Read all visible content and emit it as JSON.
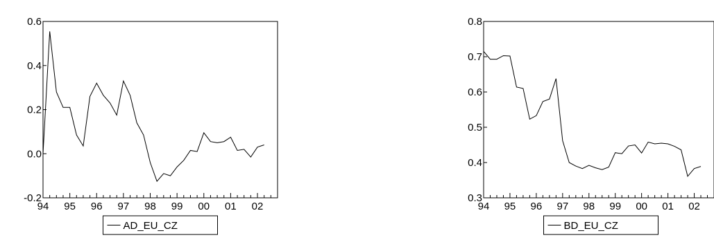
{
  "chart_data": [
    {
      "type": "line",
      "title": "",
      "xlabel": "",
      "ylabel": "",
      "x_tick_labels": [
        "94",
        "95",
        "96",
        "97",
        "98",
        "99",
        "00",
        "01",
        "02"
      ],
      "ylim": [
        -0.2,
        0.6
      ],
      "y_ticks": [
        -0.2,
        0.0,
        0.2,
        0.4,
        0.6
      ],
      "y_tick_labels": [
        "-0.2",
        "0.0",
        "0.2",
        "0.4",
        "0.6"
      ],
      "grid": false,
      "legend_position": "bottom",
      "series": [
        {
          "name": "AD_EU_CZ",
          "color": "#000000",
          "x": [
            1994.0,
            1994.25,
            1994.5,
            1994.75,
            1995.0,
            1995.25,
            1995.5,
            1995.75,
            1996.0,
            1996.25,
            1996.5,
            1996.75,
            1997.0,
            1997.25,
            1997.5,
            1997.75,
            1998.0,
            1998.25,
            1998.5,
            1998.75,
            1999.0,
            1999.25,
            1999.5,
            1999.75,
            2000.0,
            2000.25,
            2000.5,
            2000.75,
            2001.0,
            2001.25,
            2001.5,
            2001.75,
            2002.0,
            2002.25
          ],
          "y": [
            0.0,
            0.555,
            0.28,
            0.21,
            0.21,
            0.085,
            0.035,
            0.26,
            0.32,
            0.265,
            0.23,
            0.175,
            0.33,
            0.265,
            0.14,
            0.085,
            -0.04,
            -0.125,
            -0.09,
            -0.1,
            -0.06,
            -0.03,
            0.015,
            0.01,
            0.095,
            0.055,
            0.05,
            0.055,
            0.075,
            0.015,
            0.02,
            -0.015,
            0.03,
            0.04
          ]
        }
      ]
    },
    {
      "type": "line",
      "title": "",
      "xlabel": "",
      "ylabel": "",
      "x_tick_labels": [
        "94",
        "95",
        "96",
        "97",
        "98",
        "99",
        "00",
        "01",
        "02"
      ],
      "ylim": [
        0.3,
        0.8
      ],
      "y_ticks": [
        0.3,
        0.4,
        0.5,
        0.6,
        0.7,
        0.8
      ],
      "y_tick_labels": [
        "0.3",
        "0.4",
        "0.5",
        "0.6",
        "0.7",
        "0.8"
      ],
      "grid": false,
      "legend_position": "bottom",
      "series": [
        {
          "name": "BD_EU_CZ",
          "color": "#000000",
          "x": [
            1994.0,
            1994.25,
            1994.5,
            1994.75,
            1995.0,
            1995.25,
            1995.5,
            1995.75,
            1996.0,
            1996.25,
            1996.5,
            1996.75,
            1997.0,
            1997.25,
            1997.5,
            1997.75,
            1998.0,
            1998.25,
            1998.5,
            1998.75,
            1999.0,
            1999.25,
            1999.5,
            1999.75,
            2000.0,
            2000.25,
            2000.5,
            2000.75,
            2001.0,
            2001.25,
            2001.5,
            2001.75,
            2002.0,
            2002.25
          ],
          "y": [
            0.715,
            0.693,
            0.693,
            0.703,
            0.702,
            0.614,
            0.61,
            0.523,
            0.533,
            0.573,
            0.58,
            0.638,
            0.462,
            0.4,
            0.39,
            0.383,
            0.392,
            0.385,
            0.38,
            0.387,
            0.428,
            0.425,
            0.447,
            0.45,
            0.427,
            0.458,
            0.453,
            0.455,
            0.453,
            0.446,
            0.436,
            0.361,
            0.383,
            0.389
          ]
        }
      ]
    }
  ]
}
